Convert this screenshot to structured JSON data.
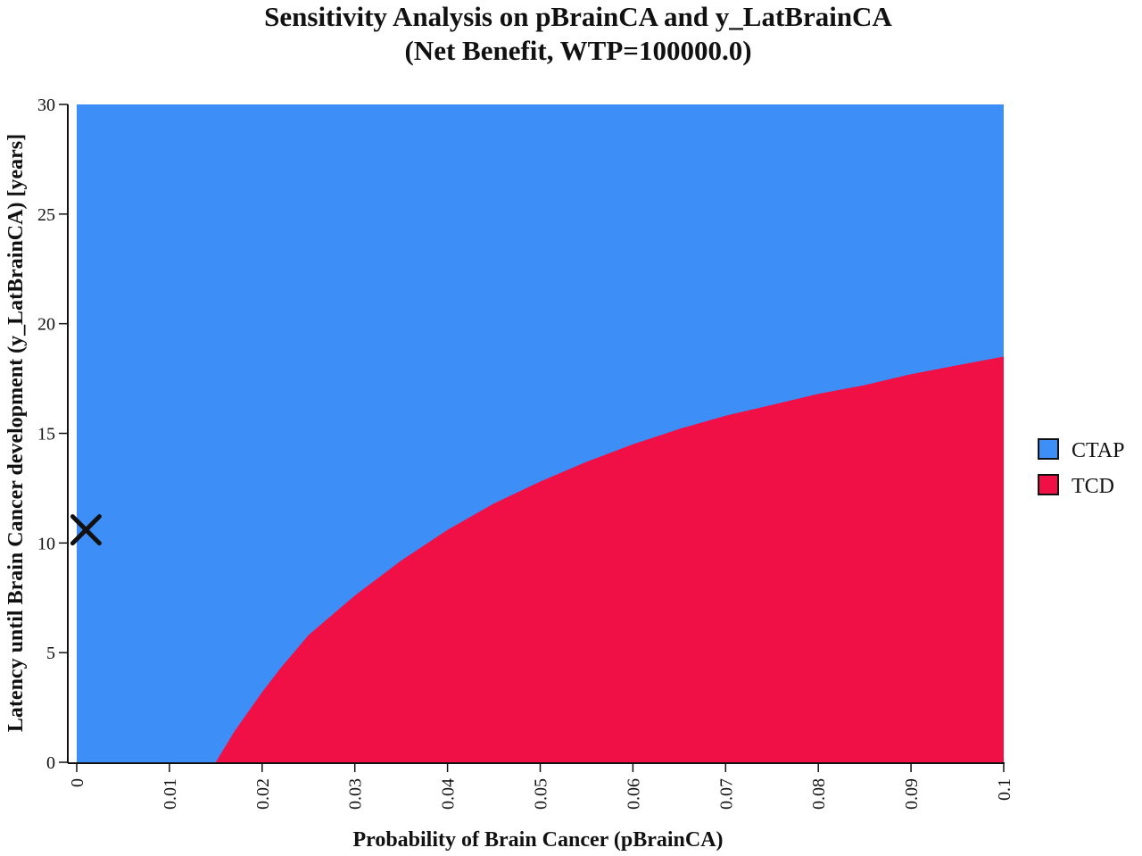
{
  "chart_data": {
    "type": "area",
    "title": "Sensitivity Analysis on pBrainCA and y_LatBrainCA",
    "subtitle": "(Net Benefit, WTP=100000.0)",
    "xlabel": "Probability of Brain Cancer (pBrainCA)",
    "ylabel": "Latency until Brain Cancer development (y_LatBrainCA) [years]",
    "xlim": [
      0,
      0.1
    ],
    "ylim": [
      0,
      30
    ],
    "x_ticks": [
      "0",
      "0.01",
      "0.02",
      "0.03",
      "0.04",
      "0.05",
      "0.06",
      "0.07",
      "0.08",
      "0.09",
      "0.1"
    ],
    "y_ticks": [
      "0",
      "5",
      "10",
      "15",
      "20",
      "25",
      "30"
    ],
    "legend_position": "right",
    "series": [
      {
        "name": "CTAP",
        "color": "#3d8ef7",
        "region": "above boundary"
      },
      {
        "name": "TCD",
        "color": "#f01045",
        "region": "below boundary"
      }
    ],
    "boundary": {
      "x": [
        0.015,
        0.017,
        0.019,
        0.02,
        0.022,
        0.025,
        0.03,
        0.035,
        0.04,
        0.045,
        0.05,
        0.055,
        0.06,
        0.065,
        0.07,
        0.075,
        0.08,
        0.085,
        0.09,
        0.095,
        0.1
      ],
      "y": [
        0,
        1.4,
        2.6,
        3.2,
        4.3,
        5.8,
        7.6,
        9.2,
        10.6,
        11.8,
        12.8,
        13.7,
        14.5,
        15.2,
        15.8,
        16.3,
        16.8,
        17.2,
        17.7,
        18.1,
        18.5
      ]
    },
    "marker": {
      "label": "X",
      "x": 0.001,
      "y": 10.6
    }
  }
}
